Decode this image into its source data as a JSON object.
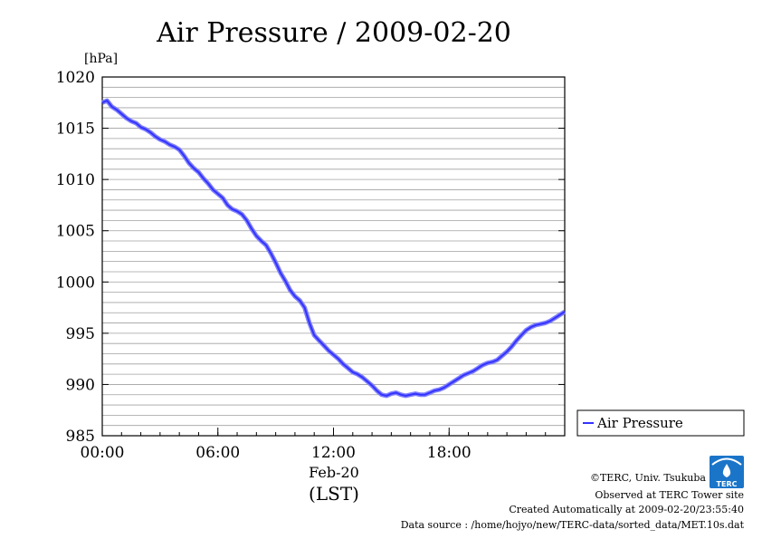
{
  "chart_data": {
    "type": "line",
    "title": "Air Pressure / 2009-02-20",
    "ylabel": "[hPa]",
    "xunit": "(LST)",
    "date_label": "Feb-20",
    "ylim": [
      985,
      1020
    ],
    "y_ticks": [
      985,
      990,
      995,
      1000,
      1005,
      1010,
      1015,
      1020
    ],
    "x_ticks": [
      "00:00",
      "06:00",
      "12:00",
      "18:00"
    ],
    "xlim_hours": [
      0,
      24
    ],
    "grid": true,
    "legend_position": "right",
    "series": [
      {
        "name": "Air Pressure",
        "color": "#3333ff",
        "x_hours": [
          0.0,
          0.25,
          0.5,
          0.75,
          1.0,
          1.25,
          1.5,
          1.75,
          2.0,
          2.25,
          2.5,
          2.75,
          3.0,
          3.25,
          3.5,
          3.75,
          4.0,
          4.25,
          4.5,
          4.75,
          5.0,
          5.25,
          5.5,
          5.75,
          6.0,
          6.25,
          6.5,
          6.75,
          7.0,
          7.25,
          7.5,
          7.75,
          8.0,
          8.25,
          8.5,
          8.75,
          9.0,
          9.25,
          9.5,
          9.75,
          10.0,
          10.25,
          10.5,
          10.75,
          11.0,
          11.25,
          11.5,
          11.75,
          12.0,
          12.25,
          12.5,
          12.75,
          13.0,
          13.25,
          13.5,
          13.75,
          14.0,
          14.25,
          14.5,
          14.75,
          15.0,
          15.25,
          15.5,
          15.75,
          16.0,
          16.25,
          16.5,
          16.75,
          17.0,
          17.25,
          17.5,
          17.75,
          18.0,
          18.25,
          18.5,
          18.75,
          19.0,
          19.25,
          19.5,
          19.75,
          20.0,
          20.25,
          20.5,
          20.75,
          21.0,
          21.25,
          21.5,
          21.75,
          22.0,
          22.25,
          22.5,
          22.75,
          23.0,
          23.25,
          23.5,
          23.75,
          24.0
        ],
        "values": [
          1017.5,
          1017.7,
          1017.1,
          1016.8,
          1016.4,
          1016.0,
          1015.7,
          1015.5,
          1015.1,
          1014.9,
          1014.6,
          1014.2,
          1013.9,
          1013.7,
          1013.4,
          1013.2,
          1012.9,
          1012.3,
          1011.6,
          1011.1,
          1010.7,
          1010.1,
          1009.6,
          1009.0,
          1008.6,
          1008.2,
          1007.5,
          1007.1,
          1006.9,
          1006.6,
          1006.0,
          1005.2,
          1004.5,
          1004.0,
          1003.6,
          1002.8,
          1001.9,
          1000.9,
          1000.1,
          999.2,
          998.6,
          998.2,
          997.5,
          996.0,
          994.8,
          994.3,
          993.8,
          993.3,
          992.9,
          992.5,
          992.0,
          991.6,
          991.2,
          991.0,
          990.7,
          990.3,
          989.9,
          989.4,
          989.0,
          988.9,
          989.1,
          989.2,
          989.0,
          988.9,
          989.0,
          989.1,
          989.0,
          989.0,
          989.2,
          989.4,
          989.5,
          989.7,
          990.0,
          990.3,
          990.6,
          990.9,
          991.1,
          991.3,
          991.6,
          991.9,
          992.1,
          992.2,
          992.4,
          992.8,
          993.2,
          993.7,
          994.3,
          994.8,
          995.3,
          995.6,
          995.8,
          995.9,
          996.0,
          996.2,
          996.5,
          996.8,
          997.1
        ]
      }
    ]
  },
  "credits": [
    "©TERC, Univ. Tsukuba",
    "Observed at TERC Tower site",
    "Created Automatically at 2009-02-20/23:55:40",
    "Data source : /home/hojyo/new/TERC-data/sorted_data/MET.10s.dat"
  ],
  "logo": {
    "text": "TERC",
    "color": "#1a75c9"
  }
}
